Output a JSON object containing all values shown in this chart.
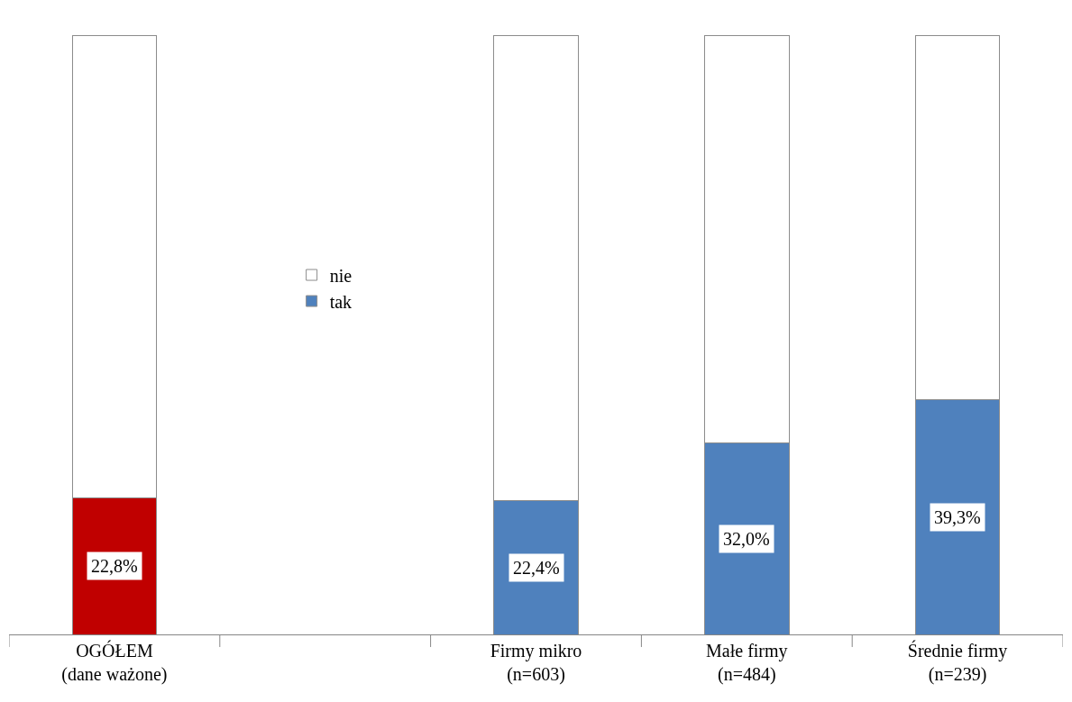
{
  "chart_data": {
    "type": "bar",
    "stacked": true,
    "categories": [
      "OGÓŁEM\n(dane ważone)",
      null,
      "Firmy mikro\n(n=603)",
      "Małe firmy\n(n=484)",
      "Średnie firmy\n(n=239)"
    ],
    "series": [
      {
        "name": "tak",
        "color": "#4f81bd",
        "colors": [
          "#c00000",
          "#4f81bd",
          "#4f81bd",
          "#4f81bd",
          "#4f81bd"
        ],
        "values": [
          22.8,
          null,
          22.4,
          32.0,
          39.3
        ],
        "value_labels": [
          "22,8%",
          null,
          "22,4%",
          "32,0%",
          "39,3%"
        ]
      },
      {
        "name": "nie",
        "color": "#ffffff",
        "values": [
          77.2,
          null,
          77.6,
          68.0,
          60.7
        ]
      }
    ],
    "legend": "left"
  }
}
